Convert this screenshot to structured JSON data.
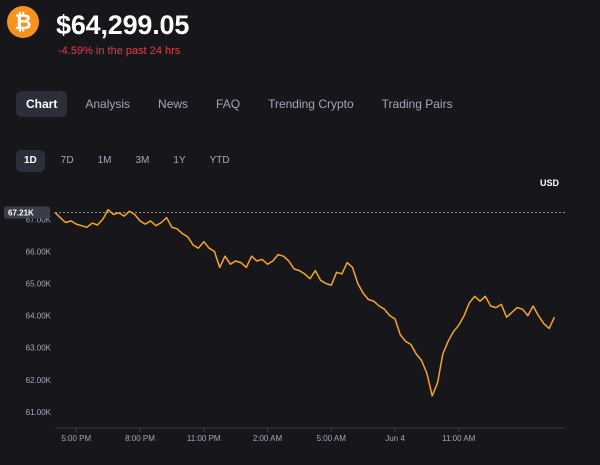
{
  "coin": {
    "icon": "bitcoin-logo-icon",
    "icon_color": "#f7931a"
  },
  "price": "$64,299.05",
  "change_text": "-4.59% in the past 24 hrs",
  "colors": {
    "negative": "#ea3943",
    "line": "#f5a623",
    "background": "#17171b",
    "tab_active_bg": "#2b2f3a",
    "muted_text": "#a1a7bb"
  },
  "tabs": [
    {
      "label": "Chart",
      "active": true
    },
    {
      "label": "Analysis",
      "active": false
    },
    {
      "label": "News",
      "active": false
    },
    {
      "label": "FAQ",
      "active": false
    },
    {
      "label": "Trending Crypto",
      "active": false
    },
    {
      "label": "Trading Pairs",
      "active": false
    }
  ],
  "ranges": [
    {
      "label": "1D",
      "active": true
    },
    {
      "label": "7D",
      "active": false
    },
    {
      "label": "1M",
      "active": false
    },
    {
      "label": "3M",
      "active": false
    },
    {
      "label": "1Y",
      "active": false
    },
    {
      "label": "YTD",
      "active": false
    }
  ],
  "chart_data": {
    "type": "line",
    "currency_label": "USD",
    "open_marker_label": "67.21K",
    "open_value": 67210,
    "y_ticks": [
      {
        "label": "67.00K",
        "value": 67000
      },
      {
        "label": "66.00K",
        "value": 66000
      },
      {
        "label": "65.00K",
        "value": 65000
      },
      {
        "label": "64.00K",
        "value": 64000
      },
      {
        "label": "63.00K",
        "value": 63000
      },
      {
        "label": "62.00K",
        "value": 62000
      },
      {
        "label": "61.00K",
        "value": 61000
      }
    ],
    "x_ticks": [
      {
        "label": "5:00 PM",
        "t": 1
      },
      {
        "label": "8:00 PM",
        "t": 4
      },
      {
        "label": "11:00 PM",
        "t": 7
      },
      {
        "label": "2:00 AM",
        "t": 10
      },
      {
        "label": "5:00 AM",
        "t": 13
      },
      {
        "label": "Jun 4",
        "t": 16
      },
      {
        "label": "11:00 AM",
        "t": 19
      }
    ],
    "ylim": [
      60500,
      67600
    ],
    "xlim": [
      0,
      24
    ],
    "grid": false,
    "series": [
      {
        "x": [
          0,
          0.25,
          0.5,
          0.75,
          1,
          1.25,
          1.5,
          1.75,
          2,
          2.25,
          2.5,
          2.75,
          3,
          3.25,
          3.5,
          3.75,
          4,
          4.25,
          4.5,
          4.75,
          5,
          5.25,
          5.5,
          5.75,
          6,
          6.25,
          6.5,
          6.75,
          7,
          7.25,
          7.5,
          7.75,
          8,
          8.25,
          8.5,
          8.75,
          9,
          9.25,
          9.5,
          9.75,
          10,
          10.25,
          10.5,
          10.75,
          11,
          11.25,
          11.5,
          11.75,
          12,
          12.25,
          12.5,
          12.75,
          13,
          13.25,
          13.5,
          13.75,
          14,
          14.25,
          14.5,
          14.75,
          15,
          15.25,
          15.5,
          15.75,
          16,
          16.25,
          16.5,
          16.75,
          17,
          17.25,
          17.5,
          17.75,
          18,
          18.25,
          18.5,
          18.75,
          19,
          19.25,
          19.5,
          19.75,
          20,
          20.25,
          20.5,
          20.75,
          21,
          21.25,
          21.5,
          21.75,
          22,
          22.25,
          22.5,
          22.75,
          23,
          23.25,
          23.5
        ],
        "y": [
          67210,
          67050,
          66900,
          66950,
          66850,
          66800,
          66750,
          66880,
          66820,
          67000,
          67300,
          67150,
          67200,
          67100,
          67250,
          67150,
          66950,
          66850,
          66950,
          66800,
          66900,
          67050,
          66750,
          66700,
          66550,
          66450,
          66200,
          66100,
          66300,
          66100,
          66000,
          65500,
          65850,
          65600,
          65700,
          65650,
          65500,
          65850,
          65700,
          65750,
          65600,
          65700,
          65900,
          65850,
          65700,
          65450,
          65400,
          65300,
          65150,
          65400,
          65100,
          65000,
          64950,
          65350,
          65300,
          65650,
          65500,
          65000,
          64700,
          64500,
          64450,
          64300,
          64200,
          64000,
          63900,
          63400,
          63200,
          63100,
          62800,
          62600,
          62200,
          61500,
          61900,
          62800,
          63200,
          63500,
          63700,
          64000,
          64400,
          64600,
          64450,
          64600,
          64300,
          64250,
          64350,
          63950,
          64100,
          64250,
          64200,
          64000,
          64300,
          64000,
          63750,
          63600,
          63950
        ]
      }
    ]
  }
}
